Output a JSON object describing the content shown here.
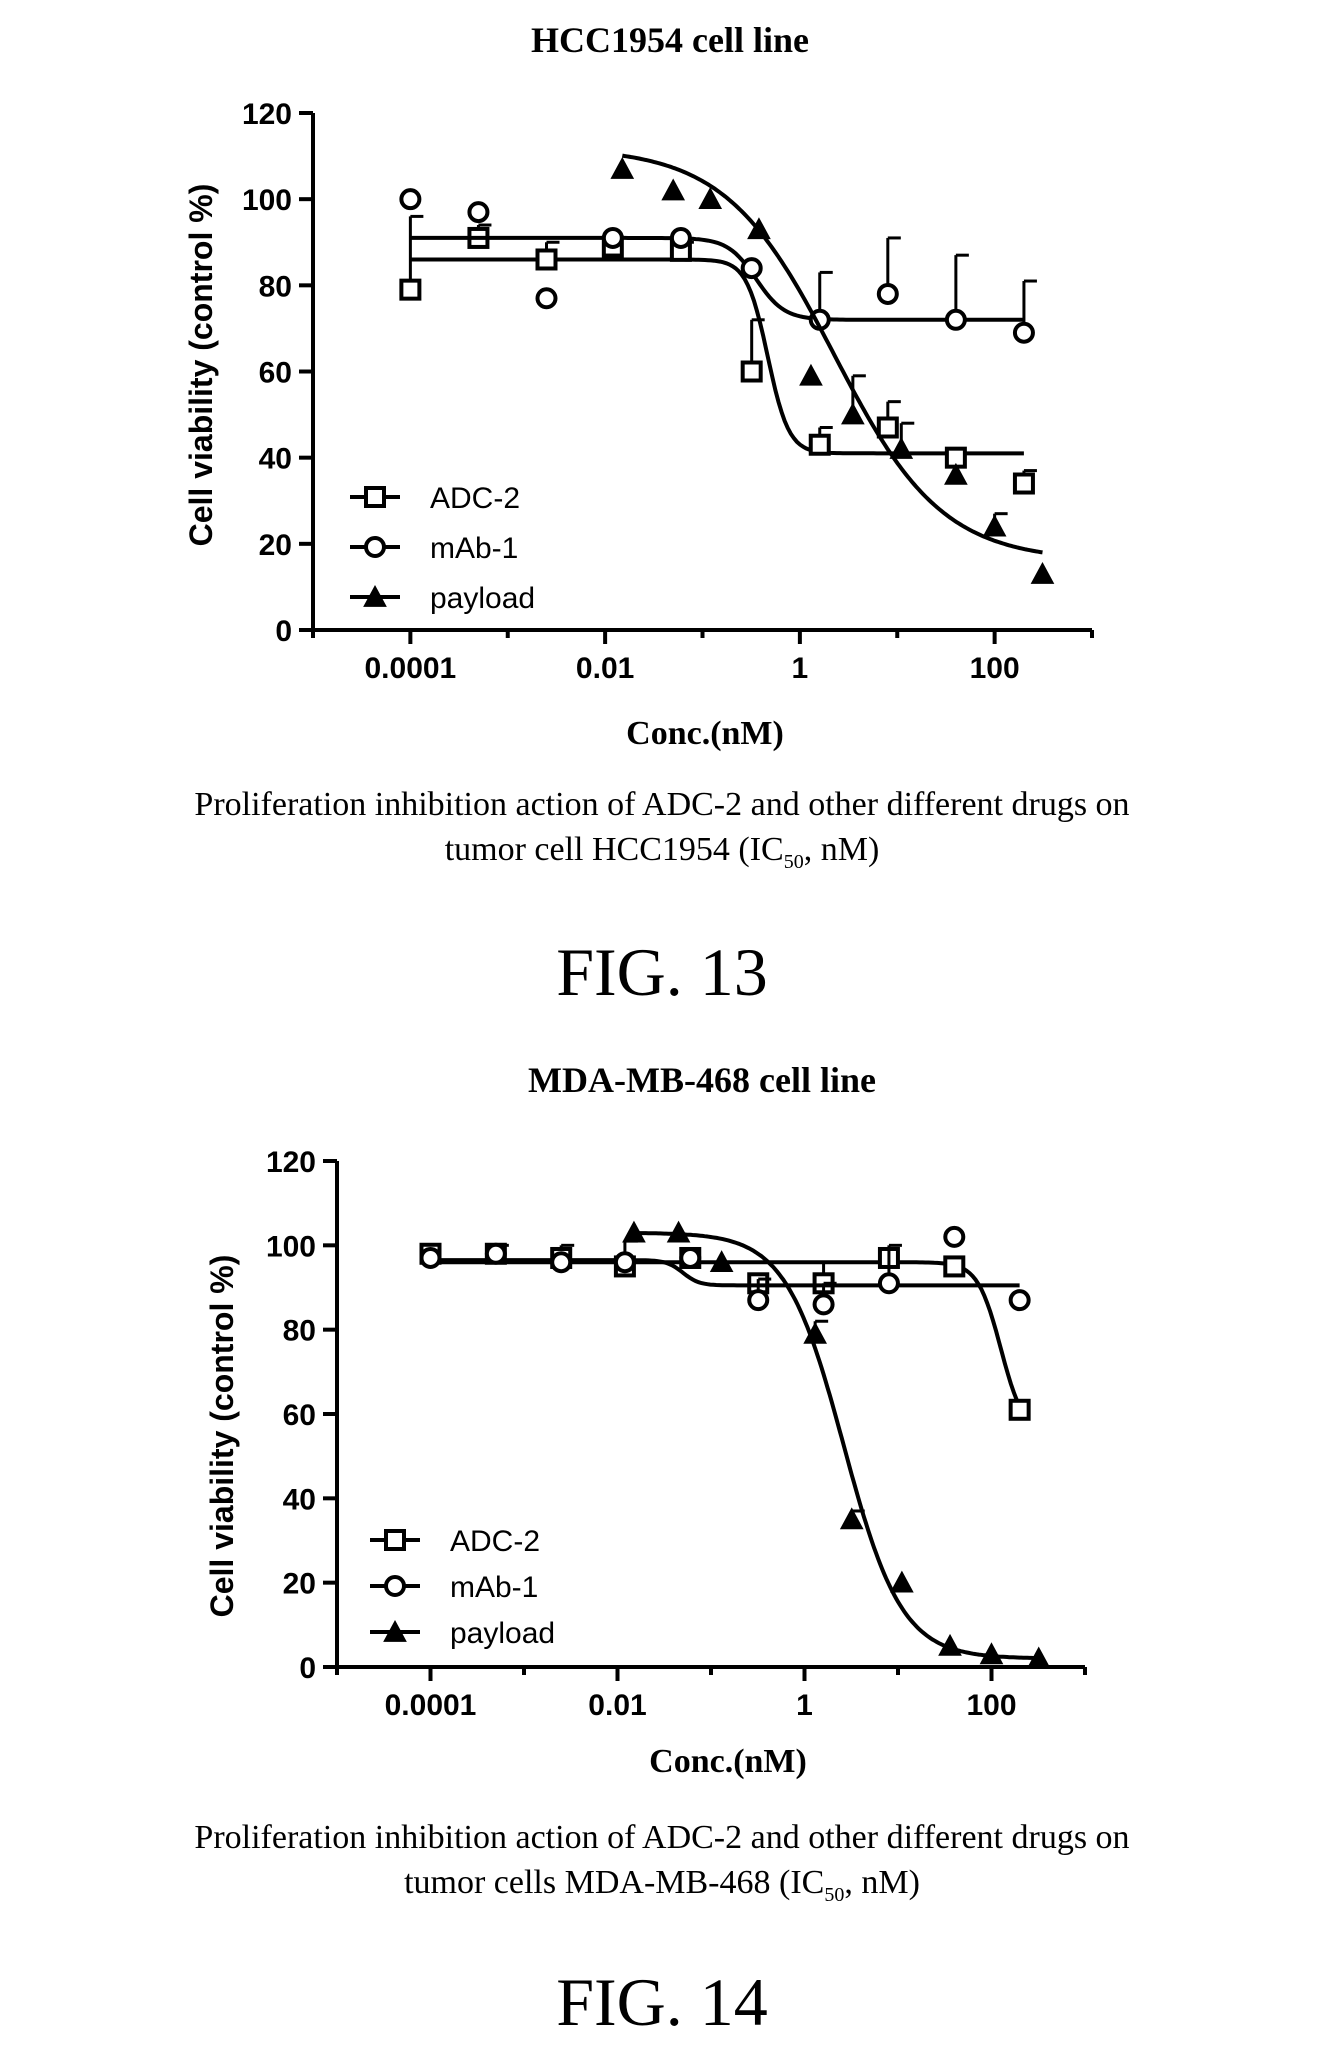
{
  "figures": [
    {
      "fig_label": "FIG. 13",
      "caption_line1": "Proliferation inhibition action of ADC-2 and other different drugs on",
      "caption_line2_pre": "tumor cell HCC1954 (IC",
      "caption_sub": "50",
      "caption_line2_post": ", nM)"
    },
    {
      "fig_label": "FIG. 14",
      "caption_line1": "Proliferation inhibition action of ADC-2 and other different drugs on",
      "caption_line2_pre": "tumor cells MDA-MB-468 (IC",
      "caption_sub": "50",
      "caption_line2_post": ", nM)"
    }
  ],
  "chart_data": [
    {
      "type": "scatter",
      "title": "HCC1954 cell line",
      "xlabel": "Conc.(nM)",
      "ylabel": "Cell viability (control %)",
      "x_scale": "log",
      "xlim": [
        1e-05,
        1000
      ],
      "ylim": [
        0,
        120
      ],
      "x_ticks": [
        0.0001,
        0.01,
        1,
        100
      ],
      "x_tick_labels": [
        "0.0001",
        "0.01",
        "1",
        "100"
      ],
      "y_ticks": [
        0,
        20,
        40,
        60,
        80,
        100,
        120
      ],
      "y_tick_labels": [
        "0",
        "20",
        "40",
        "60",
        "80",
        "100",
        "120"
      ],
      "grid": false,
      "legend_position": "bottom-left",
      "series": [
        {
          "name": "ADC-2",
          "marker": "square",
          "x": [
            0.0001,
            0.0005,
            0.0025,
            0.012,
            0.06,
            0.32,
            1.6,
            8,
            40,
            200
          ],
          "y": [
            79,
            91,
            86,
            89,
            88,
            60,
            43,
            47,
            40,
            34
          ],
          "err": [
            17,
            3,
            4,
            2,
            2,
            12,
            4,
            6,
            0,
            3
          ],
          "fit": {
            "top": 86,
            "bottom": 41,
            "log_ec50": -0.33,
            "hill": 4,
            "x_range": [
              0.0001,
              200
            ]
          }
        },
        {
          "name": "mAb-1",
          "marker": "circle",
          "x": [
            0.0001,
            0.0005,
            0.0025,
            0.012,
            0.06,
            0.32,
            1.6,
            8,
            40,
            200
          ],
          "y": [
            100,
            97,
            77,
            91,
            91,
            84,
            72,
            78,
            72,
            69
          ],
          "err": [
            0,
            0,
            0,
            0,
            0,
            0,
            11,
            13,
            15,
            12
          ],
          "fit": {
            "top": 91,
            "bottom": 72,
            "log_ec50": -0.45,
            "hill": 3,
            "x_range": [
              0.0001,
              200
            ]
          }
        },
        {
          "name": "payload",
          "marker": "triangle",
          "x": [
            0.015,
            0.05,
            0.12,
            0.38,
            1.3,
            3.5,
            11,
            40,
            100,
            310
          ],
          "y": [
            107,
            102,
            100,
            93,
            59,
            50,
            42,
            36,
            24,
            13
          ],
          "err": [
            0,
            0,
            0,
            0,
            0,
            9,
            6,
            0,
            3,
            0
          ],
          "fit": {
            "top": 112,
            "bottom": 16,
            "log_ec50": 0.35,
            "hill": 0.78,
            "x_range": [
              0.015,
              310
            ]
          }
        }
      ]
    },
    {
      "type": "scatter",
      "title": "MDA-MB-468 cell line",
      "xlabel": "Conc.(nM)",
      "ylabel": "Cell viability (control %)",
      "x_scale": "log",
      "xlim": [
        1e-05,
        1000
      ],
      "ylim": [
        0,
        120
      ],
      "x_ticks": [
        0.0001,
        0.01,
        1,
        100
      ],
      "x_tick_labels": [
        "0.0001",
        "0.01",
        "1",
        "100"
      ],
      "y_ticks": [
        0,
        20,
        40,
        60,
        80,
        100,
        120
      ],
      "y_tick_labels": [
        "0",
        "20",
        "40",
        "60",
        "80",
        "100",
        "120"
      ],
      "grid": false,
      "legend_position": "bottom-left",
      "series": [
        {
          "name": "ADC-2",
          "marker": "square",
          "x": [
            0.0001,
            0.0005,
            0.0025,
            0.012,
            0.06,
            0.32,
            1.6,
            8,
            40,
            200
          ],
          "y": [
            98,
            98,
            97,
            95,
            97,
            91,
            91,
            97,
            95,
            61
          ],
          "err": [
            0,
            2,
            3,
            6,
            0,
            0,
            5,
            0,
            0,
            0
          ],
          "fit": {
            "top": 96,
            "bottom": 55,
            "log_ec50": 2.1,
            "hill": 3.5,
            "x_range": [
              0.0001,
              200
            ]
          }
        },
        {
          "name": "mAb-1",
          "marker": "circle",
          "x": [
            0.0001,
            0.0005,
            0.0025,
            0.012,
            0.06,
            0.32,
            1.6,
            8,
            40,
            200
          ],
          "y": [
            97,
            98,
            96,
            96,
            97,
            87,
            86,
            91,
            102,
            87
          ],
          "err": [
            0,
            0,
            0,
            0,
            0,
            5,
            5,
            9,
            0,
            0
          ],
          "fit": {
            "top": 96.5,
            "bottom": 90.5,
            "log_ec50": -1.3,
            "hill": 5,
            "x_range": [
              0.0001,
              200
            ]
          }
        },
        {
          "name": "payload",
          "marker": "triangle",
          "x": [
            0.015,
            0.045,
            0.13,
            1.3,
            3.2,
            11,
            36,
            100,
            320
          ],
          "y": [
            103,
            103,
            96,
            79,
            35,
            20,
            5,
            3,
            2
          ],
          "err": [
            0,
            0,
            0,
            3,
            2,
            0,
            0,
            0,
            0
          ],
          "fit": {
            "top": 103,
            "bottom": 2,
            "log_ec50": 0.42,
            "hill": 1.4,
            "x_range": [
              0.015,
              310
            ]
          }
        }
      ]
    }
  ]
}
